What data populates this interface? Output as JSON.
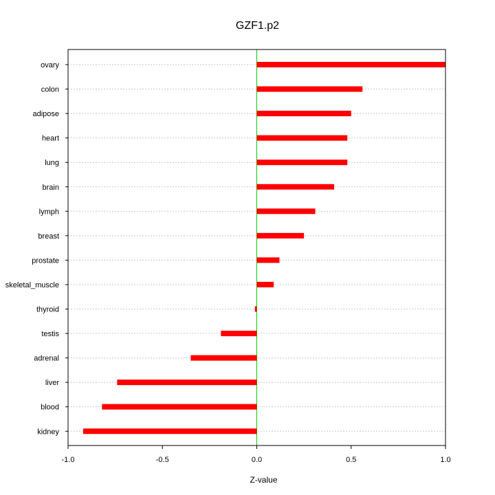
{
  "chart_data": {
    "type": "bar",
    "orientation": "horizontal",
    "title": "GZF1.p2",
    "xlabel": "Z-value",
    "ylabel": "",
    "xlim": [
      -1.0,
      1.0
    ],
    "x_ticks": [
      -1.0,
      -0.5,
      0.0,
      0.5,
      1.0
    ],
    "x_tick_labels": [
      "-1.0",
      "-0.5",
      "0.0",
      "0.5",
      "1.0"
    ],
    "categories": [
      "ovary",
      "colon",
      "adipose",
      "heart",
      "lung",
      "brain",
      "lymph",
      "breast",
      "prostate",
      "skeletal_muscle",
      "thyroid",
      "testis",
      "adrenal",
      "liver",
      "blood",
      "kidney"
    ],
    "values": [
      1.0,
      0.56,
      0.5,
      0.48,
      0.48,
      0.41,
      0.31,
      0.25,
      0.12,
      0.09,
      -0.01,
      -0.19,
      -0.35,
      -0.74,
      -0.82,
      -0.92
    ],
    "grid": true,
    "bar_color": "#ff0000",
    "zero_line_color": "#00cc00",
    "grid_color": "#c8c8c8"
  }
}
